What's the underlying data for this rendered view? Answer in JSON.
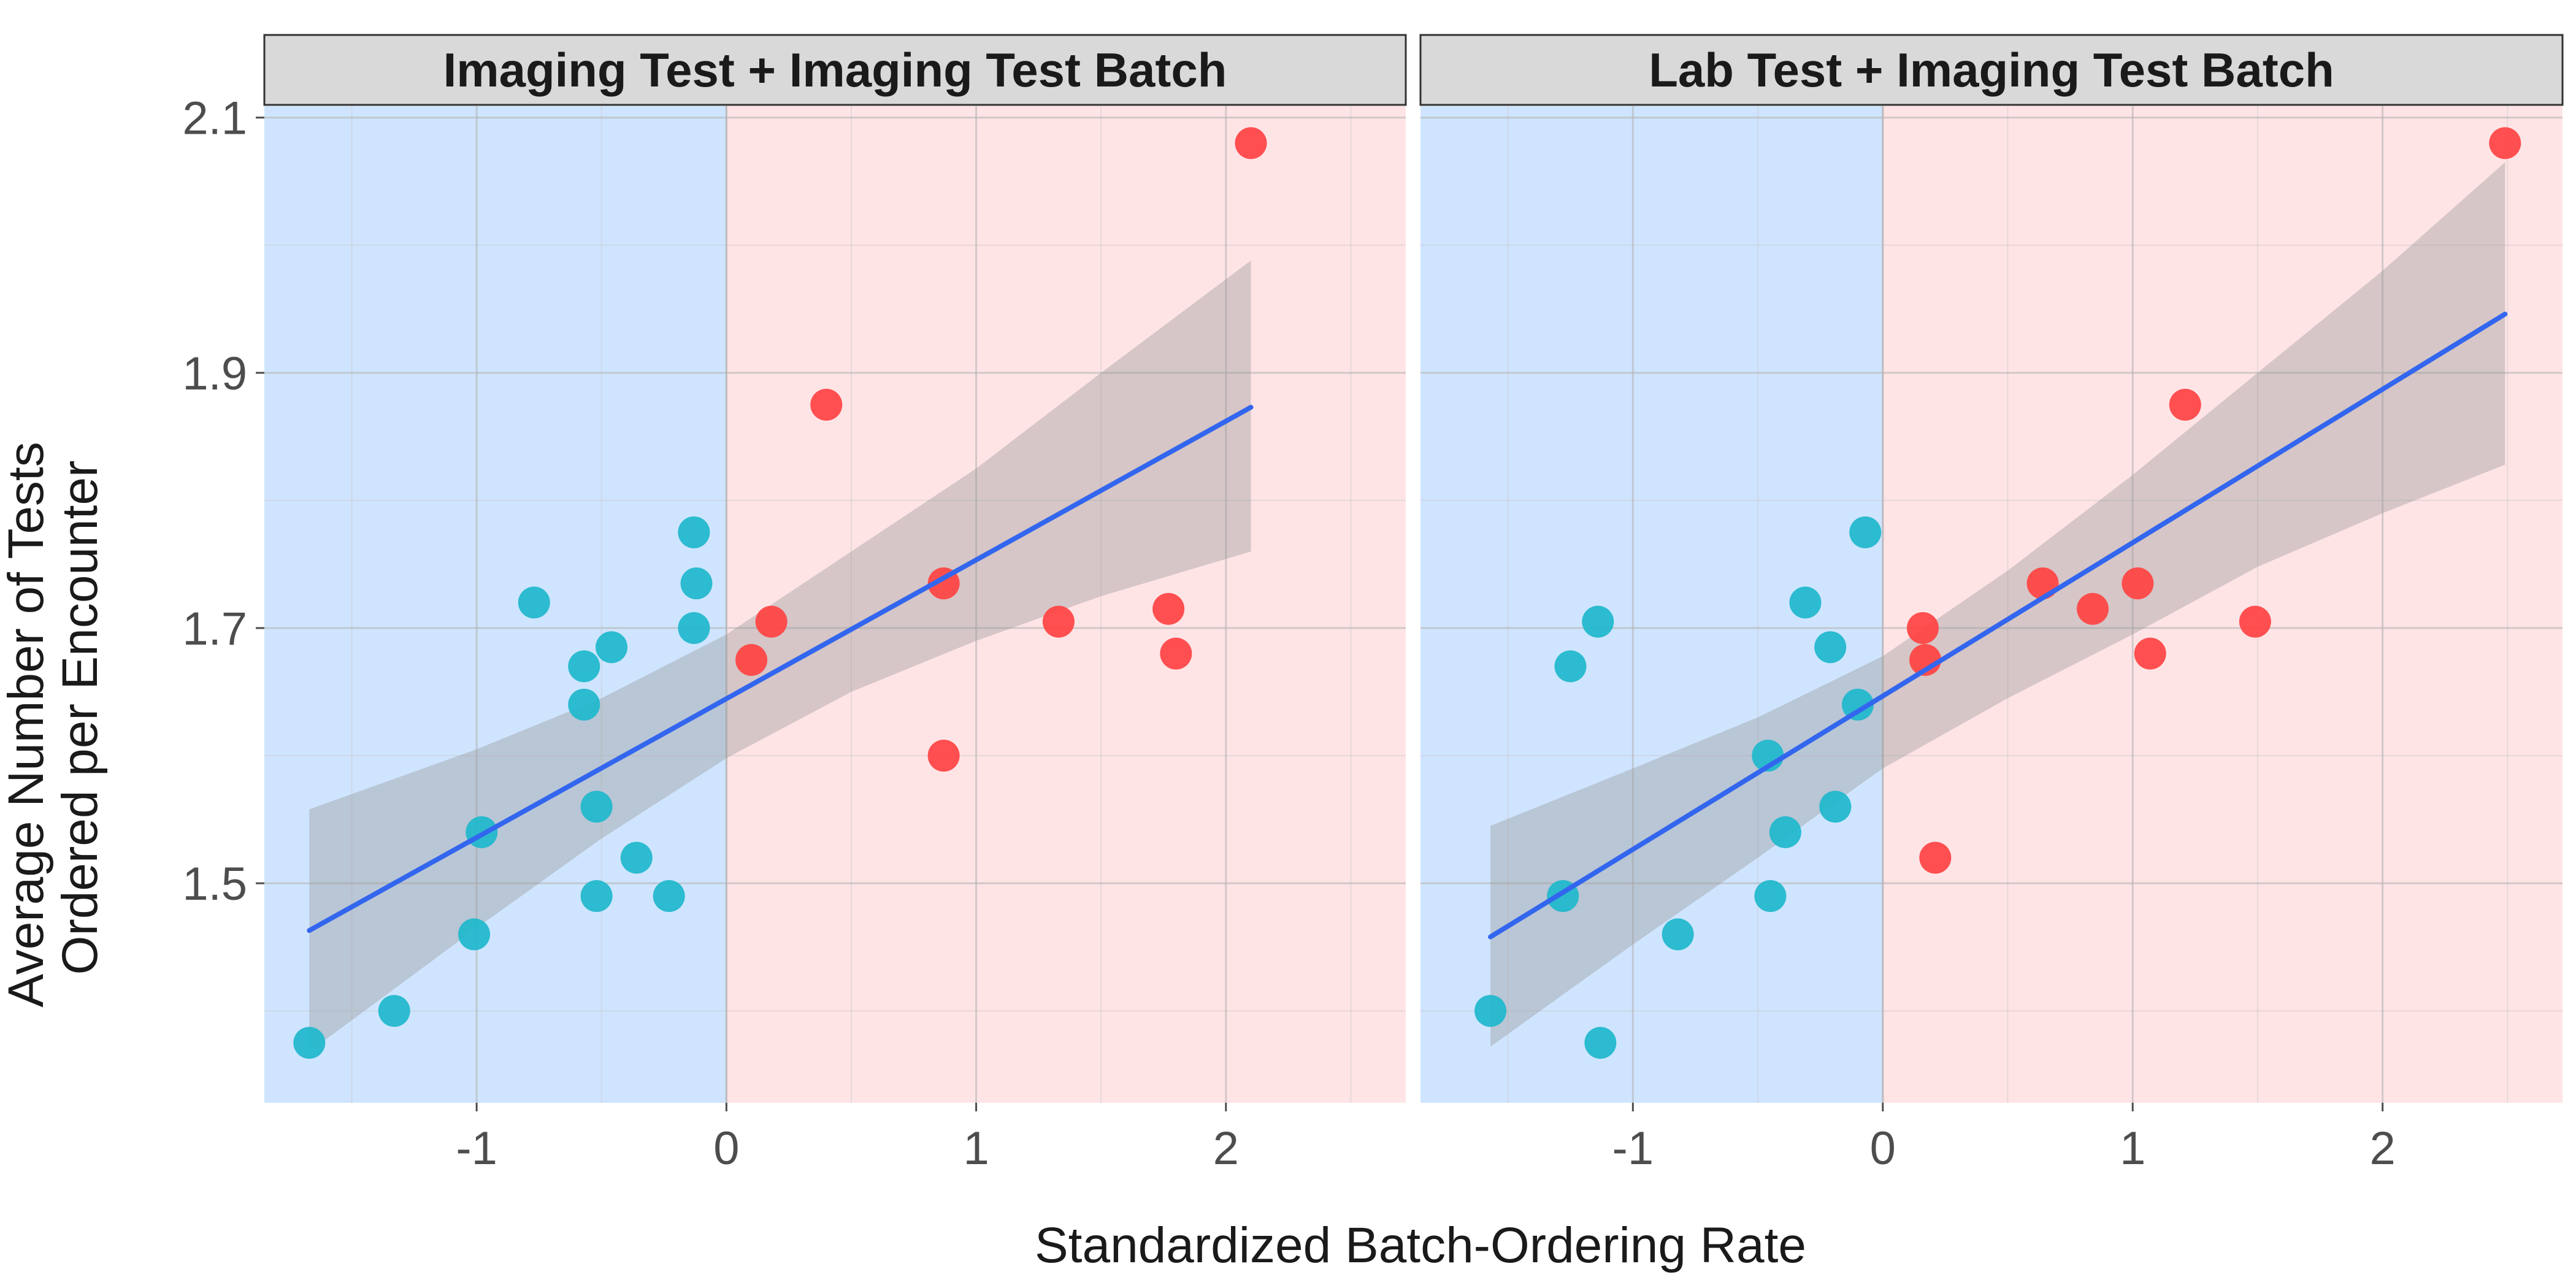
{
  "chart_data": {
    "type": "scatter",
    "xlabel": "Standardized Batch-Ordering Rate",
    "ylabel_lines": [
      "Average Number of Tests",
      "Ordered per Encounter"
    ],
    "xlim": [
      -1.85,
      2.72
    ],
    "ylim": [
      1.328,
      2.109
    ],
    "x_ticks": [
      -1,
      0,
      1,
      2
    ],
    "y_ticks": [
      1.5,
      1.7,
      1.9,
      2.1
    ],
    "grid": true,
    "colors": {
      "below_zero_points": "#1FB8CC",
      "above_zero_points": "#FF4444",
      "below_zero_region": "#CFE5FF",
      "above_zero_region": "#FFE4E6",
      "fit_line": "#3366EE",
      "confidence_band": "#999999",
      "strip_fill": "#D9D9D9"
    },
    "panels": [
      {
        "title": "Imaging Test + Imaging Test Batch",
        "points": [
          {
            "x": -1.67,
            "y": 1.375
          },
          {
            "x": -1.33,
            "y": 1.4
          },
          {
            "x": -1.01,
            "y": 1.46
          },
          {
            "x": -0.98,
            "y": 1.54
          },
          {
            "x": -0.77,
            "y": 1.72
          },
          {
            "x": -0.57,
            "y": 1.67
          },
          {
            "x": -0.57,
            "y": 1.64
          },
          {
            "x": -0.52,
            "y": 1.56
          },
          {
            "x": -0.52,
            "y": 1.49
          },
          {
            "x": -0.46,
            "y": 1.685
          },
          {
            "x": -0.36,
            "y": 1.52
          },
          {
            "x": -0.23,
            "y": 1.49
          },
          {
            "x": -0.13,
            "y": 1.775
          },
          {
            "x": -0.12,
            "y": 1.735
          },
          {
            "x": -0.13,
            "y": 1.7
          },
          {
            "x": 0.1,
            "y": 1.675
          },
          {
            "x": 0.18,
            "y": 1.705
          },
          {
            "x": 0.4,
            "y": 1.875
          },
          {
            "x": 0.87,
            "y": 1.735
          },
          {
            "x": 0.87,
            "y": 1.6
          },
          {
            "x": 1.33,
            "y": 1.705
          },
          {
            "x": 1.77,
            "y": 1.715
          },
          {
            "x": 1.8,
            "y": 1.68
          },
          {
            "x": 2.1,
            "y": 2.08
          }
        ],
        "fit": {
          "x0": -1.67,
          "y0": 1.463,
          "x1": 2.1,
          "y1": 1.873
        },
        "band_upper": [
          [
            -1.67,
            1.558
          ],
          [
            -1.0,
            1.605
          ],
          [
            -0.5,
            1.645
          ],
          [
            0.0,
            1.695
          ],
          [
            0.5,
            1.76
          ],
          [
            1.0,
            1.825
          ],
          [
            1.5,
            1.9
          ],
          [
            2.1,
            1.988
          ]
        ],
        "band_lower": [
          [
            -1.67,
            1.368
          ],
          [
            -1.0,
            1.465
          ],
          [
            -0.5,
            1.535
          ],
          [
            0.0,
            1.598
          ],
          [
            0.5,
            1.65
          ],
          [
            1.0,
            1.69
          ],
          [
            1.5,
            1.725
          ],
          [
            2.1,
            1.76
          ]
        ]
      },
      {
        "title": "Lab Test + Imaging Test Batch",
        "points": [
          {
            "x": -1.57,
            "y": 1.4
          },
          {
            "x": -1.28,
            "y": 1.49
          },
          {
            "x": -1.25,
            "y": 1.67
          },
          {
            "x": -1.14,
            "y": 1.705
          },
          {
            "x": -1.13,
            "y": 1.375
          },
          {
            "x": -0.82,
            "y": 1.46
          },
          {
            "x": -0.46,
            "y": 1.6
          },
          {
            "x": -0.45,
            "y": 1.49
          },
          {
            "x": -0.39,
            "y": 1.54
          },
          {
            "x": -0.31,
            "y": 1.72
          },
          {
            "x": -0.21,
            "y": 1.685
          },
          {
            "x": -0.19,
            "y": 1.56
          },
          {
            "x": -0.1,
            "y": 1.64
          },
          {
            "x": -0.07,
            "y": 1.775
          },
          {
            "x": 0.16,
            "y": 1.7
          },
          {
            "x": 0.17,
            "y": 1.675
          },
          {
            "x": 0.21,
            "y": 1.52
          },
          {
            "x": 0.64,
            "y": 1.735
          },
          {
            "x": 0.84,
            "y": 1.715
          },
          {
            "x": 1.02,
            "y": 1.735
          },
          {
            "x": 1.07,
            "y": 1.68
          },
          {
            "x": 1.21,
            "y": 1.875
          },
          {
            "x": 1.49,
            "y": 1.705
          },
          {
            "x": 2.49,
            "y": 2.08
          }
        ],
        "fit": {
          "x0": -1.57,
          "y0": 1.458,
          "x1": 2.49,
          "y1": 1.946
        },
        "band_upper": [
          [
            -1.57,
            1.545
          ],
          [
            -1.0,
            1.59
          ],
          [
            -0.5,
            1.63
          ],
          [
            0.0,
            1.678
          ],
          [
            0.5,
            1.745
          ],
          [
            1.0,
            1.82
          ],
          [
            1.5,
            1.9
          ],
          [
            2.0,
            1.98
          ],
          [
            2.49,
            2.065
          ]
        ],
        "band_lower": [
          [
            -1.57,
            1.372
          ],
          [
            -1.0,
            1.452
          ],
          [
            -0.5,
            1.52
          ],
          [
            0.0,
            1.59
          ],
          [
            0.5,
            1.645
          ],
          [
            1.0,
            1.695
          ],
          [
            1.5,
            1.748
          ],
          [
            2.0,
            1.79
          ],
          [
            2.49,
            1.828
          ]
        ]
      }
    ]
  }
}
